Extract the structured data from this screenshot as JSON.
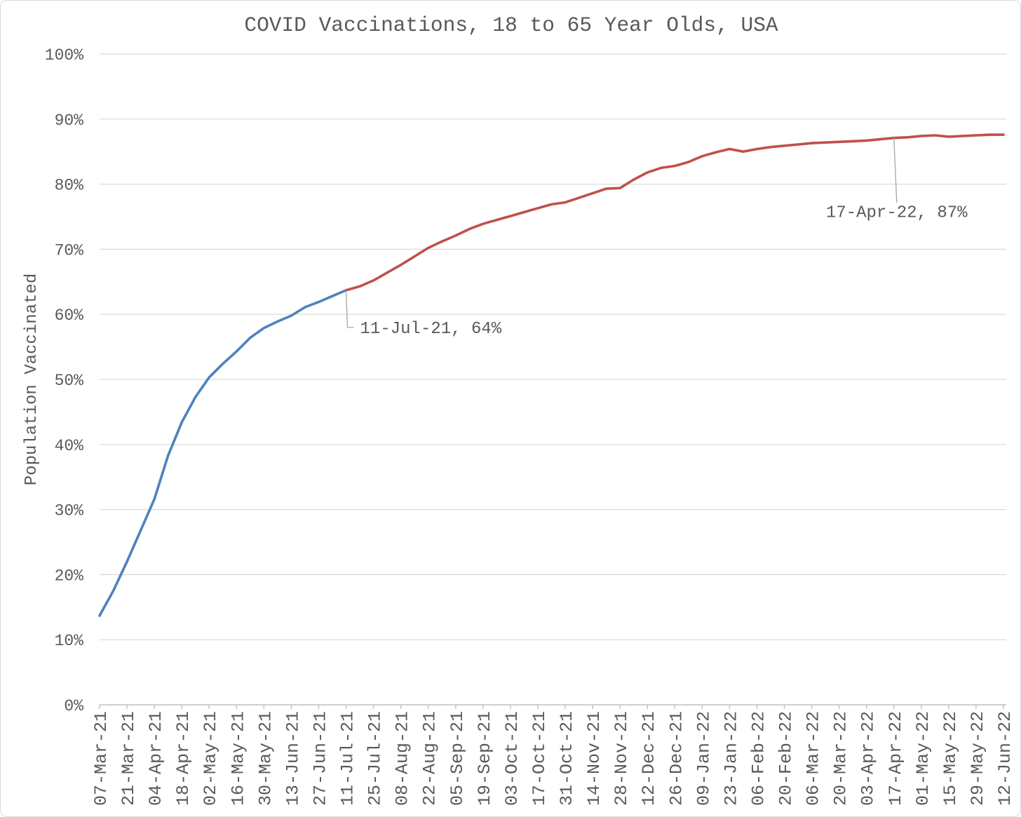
{
  "chart_data": {
    "type": "line",
    "title": "COVID Vaccinations, 18 to 65 Year Olds, USA",
    "xlabel": "",
    "ylabel": "Population Vaccinated",
    "xlim": [
      "07-Mar-21",
      "12-Jun-22"
    ],
    "ylim": [
      0,
      100
    ],
    "y_ticks": [
      0,
      10,
      20,
      30,
      40,
      50,
      60,
      70,
      80,
      90,
      100
    ],
    "y_tick_labels": [
      "0%",
      "10%",
      "20%",
      "30%",
      "40%",
      "50%",
      "60%",
      "70%",
      "80%",
      "90%",
      "100%"
    ],
    "x_tick_labels": [
      "07-Mar-21",
      "21-Mar-21",
      "04-Apr-21",
      "18-Apr-21",
      "02-May-21",
      "16-May-21",
      "30-May-21",
      "13-Jun-21",
      "27-Jun-21",
      "11-Jul-21",
      "25-Jul-21",
      "08-Aug-21",
      "22-Aug-21",
      "05-Sep-21",
      "19-Sep-21",
      "03-Oct-21",
      "17-Oct-21",
      "31-Oct-21",
      "14-Nov-21",
      "28-Nov-21",
      "12-Dec-21",
      "26-Dec-21",
      "09-Jan-22",
      "23-Jan-22",
      "06-Feb-22",
      "20-Feb-22",
      "06-Mar-22",
      "20-Mar-22",
      "03-Apr-22",
      "17-Apr-22",
      "01-May-22",
      "15-May-22",
      "29-May-22",
      "12-Jun-22"
    ],
    "grid": {
      "horizontal": true,
      "vertical": false
    },
    "series": [
      {
        "color": "#4F81BD",
        "x": [
          "07-Mar-21",
          "14-Mar-21",
          "21-Mar-21",
          "28-Mar-21",
          "04-Apr-21",
          "11-Apr-21",
          "18-Apr-21",
          "25-Apr-21",
          "02-May-21",
          "09-May-21",
          "16-May-21",
          "23-May-21",
          "30-May-21",
          "06-Jun-21",
          "13-Jun-21",
          "20-Jun-21",
          "27-Jun-21",
          "04-Jul-21",
          "11-Jul-21"
        ],
        "values": [
          13.7,
          17.5,
          22.0,
          26.8,
          31.6,
          38.3,
          43.4,
          47.3,
          50.3,
          52.4,
          54.3,
          56.4,
          57.9,
          58.9,
          59.8,
          61.1,
          61.9,
          62.8,
          63.7
        ]
      },
      {
        "color": "#C0504D",
        "x": [
          "11-Jul-21",
          "18-Jul-21",
          "25-Jul-21",
          "01-Aug-21",
          "08-Aug-21",
          "15-Aug-21",
          "22-Aug-21",
          "29-Aug-21",
          "05-Sep-21",
          "12-Sep-21",
          "19-Sep-21",
          "26-Sep-21",
          "03-Oct-21",
          "10-Oct-21",
          "17-Oct-21",
          "24-Oct-21",
          "31-Oct-21",
          "07-Nov-21",
          "14-Nov-21",
          "21-Nov-21",
          "28-Nov-21",
          "05-Dec-21",
          "12-Dec-21",
          "19-Dec-21",
          "26-Dec-21",
          "02-Jan-22",
          "09-Jan-22",
          "16-Jan-22",
          "23-Jan-22",
          "30-Jan-22",
          "06-Feb-22",
          "13-Feb-22",
          "20-Feb-22",
          "27-Feb-22",
          "06-Mar-22",
          "13-Mar-22",
          "20-Mar-22",
          "27-Mar-22",
          "03-Apr-22",
          "10-Apr-22",
          "17-Apr-22",
          "24-Apr-22",
          "01-May-22",
          "08-May-22",
          "15-May-22",
          "22-May-22",
          "29-May-22",
          "05-Jun-22",
          "12-Jun-22"
        ],
        "values": [
          63.7,
          64.3,
          65.2,
          66.4,
          67.6,
          68.9,
          70.2,
          71.2,
          72.1,
          73.1,
          73.9,
          74.5,
          75.1,
          75.7,
          76.3,
          76.9,
          77.2,
          77.9,
          78.6,
          79.3,
          79.4,
          80.7,
          81.8,
          82.5,
          82.8,
          83.4,
          84.3,
          84.9,
          85.4,
          85.0,
          85.4,
          85.7,
          85.9,
          86.1,
          86.3,
          86.4,
          86.5,
          86.6,
          86.7,
          86.9,
          87.1,
          87.2,
          87.4,
          87.5,
          87.3,
          87.4,
          87.5,
          87.6,
          87.6
        ]
      }
    ],
    "annotations": [
      {
        "text": "11-Jul-21, 64%",
        "x": "11-Jul-21",
        "y": 63.7
      },
      {
        "text": "17-Apr-22, 87%",
        "x": "17-Apr-22",
        "y": 87.1
      }
    ],
    "colors": {
      "text": "#595959",
      "grid": "#D9D9D9",
      "axis": "#BFBFBF",
      "leader_line": "#A6A6A6"
    }
  }
}
